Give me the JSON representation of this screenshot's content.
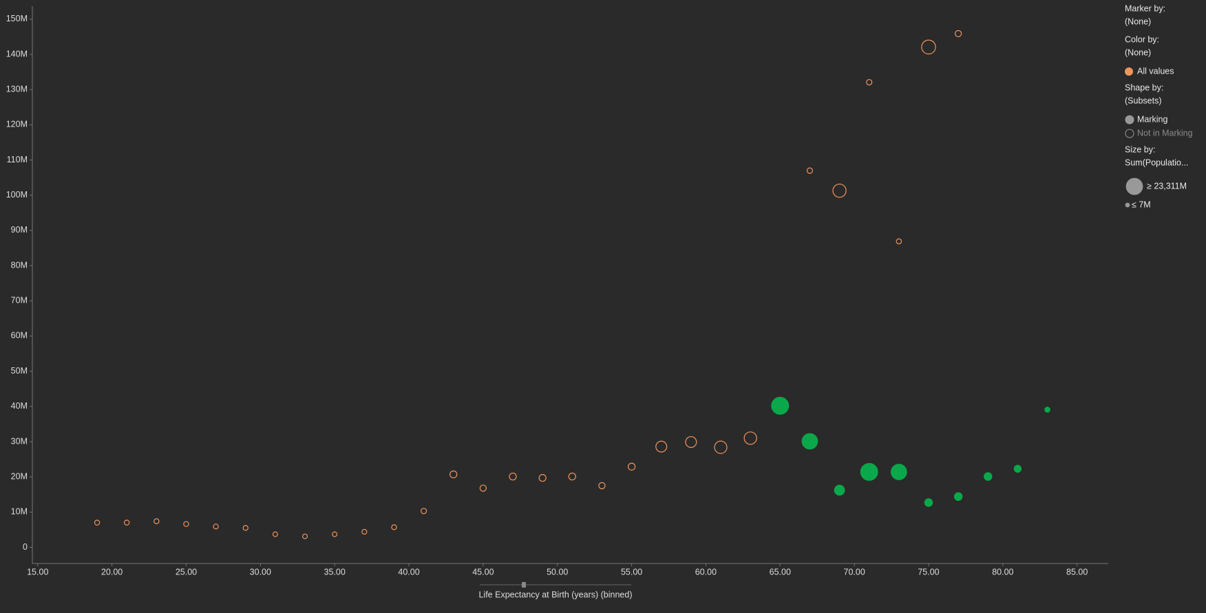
{
  "chart_data": {
    "type": "scatter",
    "x_label": "Life Expectancy at Birth (years) (binned)",
    "xlim": [
      14.64,
      87.1
    ],
    "ylim": [
      -4.6,
      153.7
    ],
    "xticks": [
      {
        "value": 15,
        "label": "15.00"
      },
      {
        "value": 20,
        "label": "20.00"
      },
      {
        "value": 25,
        "label": "25.00"
      },
      {
        "value": 30,
        "label": "30.00"
      },
      {
        "value": 35,
        "label": "35.00"
      },
      {
        "value": 40,
        "label": "40.00"
      },
      {
        "value": 45,
        "label": "45.00"
      },
      {
        "value": 50,
        "label": "50.00"
      },
      {
        "value": 55,
        "label": "55.00"
      },
      {
        "value": 60,
        "label": "60.00"
      },
      {
        "value": 65,
        "label": "65.00"
      },
      {
        "value": 70,
        "label": "70.00"
      },
      {
        "value": 75,
        "label": "75.00"
      },
      {
        "value": 80,
        "label": "80.00"
      },
      {
        "value": 85,
        "label": "85.00"
      }
    ],
    "yticks": [
      0,
      {
        "value": 10,
        "label": "10M"
      },
      {
        "value": 20,
        "label": "20M"
      },
      {
        "value": 30,
        "label": "30M"
      },
      {
        "value": 40,
        "label": "40M"
      },
      {
        "value": 50,
        "label": "50M"
      },
      {
        "value": 60,
        "label": "60M"
      },
      {
        "value": 70,
        "label": "70M"
      },
      {
        "value": 80,
        "label": "80M"
      },
      {
        "value": 90,
        "label": "90M"
      },
      {
        "value": 100,
        "label": "100M"
      },
      {
        "value": 110,
        "label": "110M"
      },
      {
        "value": 120,
        "label": "120M"
      },
      {
        "value": 130,
        "label": "130M"
      },
      {
        "value": 140,
        "label": "140M"
      },
      {
        "value": 150,
        "label": "150M"
      }
    ],
    "series": [
      {
        "name": "Not in Marking",
        "color": "#f0955c",
        "filled": false,
        "x": [
          19,
          21,
          23,
          25,
          27,
          29,
          31,
          33,
          35,
          37,
          39,
          41,
          43,
          45,
          47,
          49,
          51,
          53,
          55,
          57,
          59,
          61,
          63,
          67,
          69,
          71,
          73,
          75,
          77
        ],
        "values": [
          7.0,
          7.0,
          7.4,
          6.6,
          5.9,
          5.5,
          3.7,
          3.1,
          3.7,
          4.4,
          5.7,
          10.3,
          20.7,
          16.8,
          20.1,
          19.7,
          20.1,
          17.5,
          22.9,
          28.6,
          29.9,
          28.4,
          31.0,
          107.0,
          101.3,
          132.1,
          86.9,
          142.1,
          145.9
        ],
        "sizes": [
          20,
          20,
          25,
          20,
          15,
          15,
          7,
          7,
          7,
          10,
          15,
          100,
          800,
          400,
          800,
          750,
          800,
          400,
          800,
          5800,
          5800,
          9000,
          9100,
          100,
          11000,
          100,
          30,
          13000,
          370
        ]
      },
      {
        "name": "Marking",
        "color": "#0aa84a",
        "filled": true,
        "x": [
          65,
          67,
          69,
          71,
          73,
          75,
          77,
          79,
          81,
          83
        ],
        "values": [
          40.2,
          30.1,
          16.2,
          21.4,
          21.4,
          12.7,
          14.4,
          20.1,
          22.3,
          39.1
        ],
        "sizes": [
          23311,
          17800,
          4400,
          23000,
          17800,
          1450,
          1500,
          1400,
          850,
          40
        ]
      }
    ],
    "legend": {
      "marker_title": "Marker by:",
      "marker_value": "(None)",
      "color_title": "Color by:",
      "color_value": "(None)",
      "color_entry": "All values",
      "color_entry_color": "#f0955c",
      "shape_title": "Shape by:",
      "shape_value": "(Subsets)",
      "size_title": "Size by:",
      "size_value": "Sum(Populatio...",
      "size_max": {
        "value": 23311,
        "label": "≥ 23,311M"
      },
      "size_min": {
        "value": 7,
        "label": "≤ 7M"
      }
    }
  }
}
